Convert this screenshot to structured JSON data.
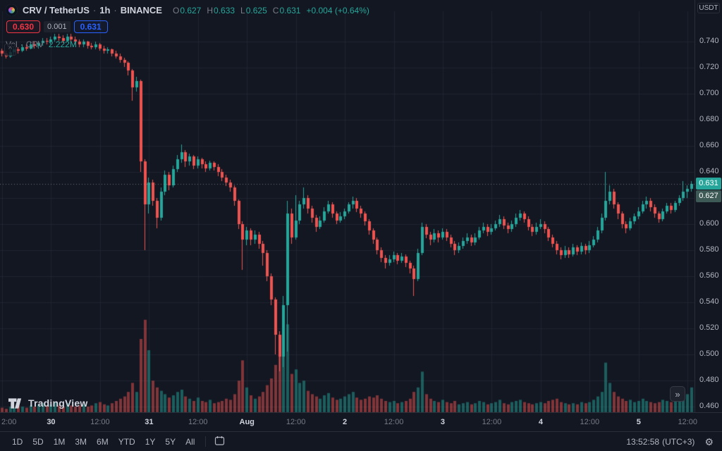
{
  "colors": {
    "background": "#131722",
    "up": "#26A69A",
    "down": "#EF5350",
    "vol_up": "rgba(38,166,154,0.5)",
    "vol_down": "rgba(239,83,80,0.5)",
    "grid": "rgba(42,46,57,0.55)",
    "last_price_line": "rgba(178,181,190,0.55)",
    "text": "#D1D4DC",
    "muted": "#787B86",
    "sell_red": "#F23645",
    "buy_blue": "#2962FF",
    "badge_last_bg": "#26A69A",
    "badge_secondary_bg": "#3E5A56"
  },
  "legend": {
    "symbol": "CRV / TetherUS",
    "sep": "·",
    "interval": "1h",
    "exchange": "BINANCE",
    "ohlc": {
      "o_label": "O",
      "o": "0.627",
      "h_label": "H",
      "h": "0.633",
      "l_label": "L",
      "l": "0.625",
      "c_label": "C",
      "c": "0.631",
      "change": "+0.004 (+0.64%)"
    }
  },
  "trade": {
    "sell": "0.630",
    "spread": "0.001",
    "buy": "0.631"
  },
  "volume_legend": {
    "label": "Vol",
    "sep": "·",
    "symbol": "CRV",
    "value": "2.222M"
  },
  "price_scale": {
    "currency": "USDT",
    "last_badge": "0.631",
    "secondary_badge": "0.627"
  },
  "toolbar": {
    "ranges": [
      "1D",
      "5D",
      "1M",
      "3M",
      "6M",
      "YTD",
      "1Y",
      "5Y",
      "All"
    ],
    "clock": "13:52:58",
    "timezone": "(UTC+3)"
  },
  "icons": {
    "chevron_up": "^",
    "double_arrow": "»",
    "gear": "⚙"
  },
  "tv_logo": {
    "text": "TradingView"
  },
  "chart_data": {
    "type": "candlestick",
    "symbol": "CRV / TetherUS",
    "interval": "1h",
    "exchange": "BINANCE",
    "visible_price_range": [
      0.456,
      0.757
    ],
    "y_ticks": [
      "0.740",
      "0.720",
      "0.700",
      "0.680",
      "0.660",
      "0.640",
      "0.620",
      "0.600",
      "0.580",
      "0.560",
      "0.540",
      "0.520",
      "0.500",
      "0.480",
      "0.460"
    ],
    "x_labels": [
      {
        "i": 0,
        "label": "2:00",
        "major": false
      },
      {
        "i": 12,
        "label": "30",
        "major": true
      },
      {
        "i": 24,
        "label": "12:00",
        "major": false
      },
      {
        "i": 36,
        "label": "31",
        "major": true
      },
      {
        "i": 48,
        "label": "12:00",
        "major": false
      },
      {
        "i": 60,
        "label": "Aug",
        "major": true
      },
      {
        "i": 72,
        "label": "12:00",
        "major": false
      },
      {
        "i": 84,
        "label": "2",
        "major": true
      },
      {
        "i": 96,
        "label": "12:00",
        "major": false
      },
      {
        "i": 108,
        "label": "3",
        "major": true
      },
      {
        "i": 120,
        "label": "12:00",
        "major": false
      },
      {
        "i": 132,
        "label": "4",
        "major": true
      },
      {
        "i": 144,
        "label": "12:00",
        "major": false
      },
      {
        "i": 156,
        "label": "5",
        "major": true
      },
      {
        "i": 168,
        "label": "12:00",
        "major": false
      }
    ],
    "candles": [
      [
        0.733,
        0.735,
        0.729,
        0.731
      ],
      [
        0.731,
        0.733,
        0.727,
        0.729
      ],
      [
        0.729,
        0.734,
        0.728,
        0.732
      ],
      [
        0.732,
        0.736,
        0.73,
        0.734
      ],
      [
        0.734,
        0.736,
        0.731,
        0.733
      ],
      [
        0.733,
        0.738,
        0.732,
        0.736
      ],
      [
        0.736,
        0.738,
        0.733,
        0.735
      ],
      [
        0.735,
        0.74,
        0.734,
        0.738
      ],
      [
        0.738,
        0.74,
        0.735,
        0.737
      ],
      [
        0.737,
        0.741,
        0.735,
        0.739
      ],
      [
        0.739,
        0.743,
        0.737,
        0.741
      ],
      [
        0.741,
        0.743,
        0.738,
        0.74
      ],
      [
        0.74,
        0.744,
        0.738,
        0.742
      ],
      [
        0.742,
        0.746,
        0.74,
        0.744
      ],
      [
        0.744,
        0.746,
        0.741,
        0.743
      ],
      [
        0.743,
        0.745,
        0.739,
        0.741
      ],
      [
        0.741,
        0.746,
        0.74,
        0.744
      ],
      [
        0.744,
        0.746,
        0.74,
        0.742
      ],
      [
        0.742,
        0.744,
        0.738,
        0.74
      ],
      [
        0.74,
        0.742,
        0.736,
        0.738
      ],
      [
        0.738,
        0.742,
        0.736,
        0.74
      ],
      [
        0.74,
        0.741,
        0.735,
        0.737
      ],
      [
        0.737,
        0.739,
        0.734,
        0.736
      ],
      [
        0.736,
        0.74,
        0.734,
        0.738
      ],
      [
        0.738,
        0.739,
        0.733,
        0.735
      ],
      [
        0.735,
        0.737,
        0.731,
        0.733
      ],
      [
        0.733,
        0.736,
        0.731,
        0.734
      ],
      [
        0.734,
        0.735,
        0.729,
        0.731
      ],
      [
        0.731,
        0.733,
        0.727,
        0.729
      ],
      [
        0.729,
        0.731,
        0.724,
        0.726
      ],
      [
        0.726,
        0.728,
        0.721,
        0.724
      ],
      [
        0.724,
        0.725,
        0.714,
        0.718
      ],
      [
        0.718,
        0.719,
        0.695,
        0.705
      ],
      [
        0.705,
        0.713,
        0.702,
        0.71
      ],
      [
        0.71,
        0.711,
        0.64,
        0.648
      ],
      [
        0.648,
        0.65,
        0.58,
        0.615
      ],
      [
        0.615,
        0.636,
        0.608,
        0.632
      ],
      [
        0.632,
        0.634,
        0.614,
        0.618
      ],
      [
        0.618,
        0.62,
        0.597,
        0.605
      ],
      [
        0.605,
        0.628,
        0.603,
        0.625
      ],
      [
        0.625,
        0.641,
        0.622,
        0.638
      ],
      [
        0.638,
        0.64,
        0.626,
        0.63
      ],
      [
        0.63,
        0.645,
        0.628,
        0.642
      ],
      [
        0.642,
        0.653,
        0.64,
        0.65
      ],
      [
        0.65,
        0.661,
        0.647,
        0.655
      ],
      [
        0.655,
        0.657,
        0.644,
        0.648
      ],
      [
        0.648,
        0.654,
        0.645,
        0.652
      ],
      [
        0.652,
        0.653,
        0.642,
        0.645
      ],
      [
        0.645,
        0.652,
        0.643,
        0.65
      ],
      [
        0.65,
        0.651,
        0.643,
        0.646
      ],
      [
        0.646,
        0.648,
        0.64,
        0.643
      ],
      [
        0.643,
        0.649,
        0.641,
        0.647
      ],
      [
        0.647,
        0.648,
        0.641,
        0.644
      ],
      [
        0.644,
        0.646,
        0.637,
        0.64
      ],
      [
        0.64,
        0.642,
        0.633,
        0.636
      ],
      [
        0.636,
        0.638,
        0.629,
        0.632
      ],
      [
        0.632,
        0.634,
        0.625,
        0.628
      ],
      [
        0.628,
        0.63,
        0.614,
        0.618
      ],
      [
        0.618,
        0.619,
        0.596,
        0.6
      ],
      [
        0.6,
        0.602,
        0.565,
        0.588
      ],
      [
        0.588,
        0.598,
        0.584,
        0.595
      ],
      [
        0.595,
        0.597,
        0.584,
        0.588
      ],
      [
        0.588,
        0.595,
        0.585,
        0.592
      ],
      [
        0.592,
        0.594,
        0.581,
        0.585
      ],
      [
        0.585,
        0.587,
        0.568,
        0.578
      ],
      [
        0.578,
        0.58,
        0.556,
        0.56
      ],
      [
        0.56,
        0.562,
        0.538,
        0.542
      ],
      [
        0.542,
        0.544,
        0.5,
        0.515
      ],
      [
        0.515,
        0.518,
        0.487,
        0.498
      ],
      [
        0.498,
        0.545,
        0.49,
        0.538
      ],
      [
        0.538,
        0.618,
        0.502,
        0.608
      ],
      [
        0.608,
        0.612,
        0.585,
        0.59
      ],
      [
        0.59,
        0.622,
        0.588,
        0.603
      ],
      [
        0.603,
        0.618,
        0.6,
        0.615
      ],
      [
        0.615,
        0.628,
        0.612,
        0.62
      ],
      [
        0.62,
        0.622,
        0.608,
        0.612
      ],
      [
        0.612,
        0.614,
        0.601,
        0.605
      ],
      [
        0.605,
        0.607,
        0.594,
        0.598
      ],
      [
        0.598,
        0.606,
        0.596,
        0.603
      ],
      [
        0.603,
        0.613,
        0.601,
        0.61
      ],
      [
        0.61,
        0.618,
        0.608,
        0.615
      ],
      [
        0.615,
        0.617,
        0.605,
        0.608
      ],
      [
        0.608,
        0.61,
        0.6,
        0.603
      ],
      [
        0.603,
        0.609,
        0.601,
        0.606
      ],
      [
        0.606,
        0.612,
        0.604,
        0.61
      ],
      [
        0.61,
        0.617,
        0.608,
        0.615
      ],
      [
        0.615,
        0.621,
        0.612,
        0.618
      ],
      [
        0.618,
        0.62,
        0.609,
        0.612
      ],
      [
        0.612,
        0.614,
        0.605,
        0.608
      ],
      [
        0.608,
        0.61,
        0.599,
        0.602
      ],
      [
        0.602,
        0.604,
        0.592,
        0.595
      ],
      [
        0.595,
        0.597,
        0.585,
        0.588
      ],
      [
        0.588,
        0.59,
        0.577,
        0.58
      ],
      [
        0.58,
        0.582,
        0.571,
        0.574
      ],
      [
        0.574,
        0.576,
        0.566,
        0.57
      ],
      [
        0.57,
        0.576,
        0.568,
        0.573
      ],
      [
        0.573,
        0.579,
        0.571,
        0.576
      ],
      [
        0.576,
        0.578,
        0.569,
        0.572
      ],
      [
        0.572,
        0.578,
        0.57,
        0.575
      ],
      [
        0.575,
        0.577,
        0.567,
        0.57
      ],
      [
        0.57,
        0.572,
        0.562,
        0.566
      ],
      [
        0.566,
        0.568,
        0.545,
        0.558
      ],
      [
        0.558,
        0.581,
        0.556,
        0.578
      ],
      [
        0.578,
        0.601,
        0.576,
        0.598
      ],
      [
        0.598,
        0.6,
        0.589,
        0.592
      ],
      [
        0.592,
        0.594,
        0.584,
        0.588
      ],
      [
        0.588,
        0.596,
        0.586,
        0.593
      ],
      [
        0.593,
        0.595,
        0.586,
        0.59
      ],
      [
        0.59,
        0.597,
        0.588,
        0.594
      ],
      [
        0.594,
        0.596,
        0.587,
        0.59
      ],
      [
        0.59,
        0.592,
        0.582,
        0.585
      ],
      [
        0.585,
        0.587,
        0.576,
        0.58
      ],
      [
        0.58,
        0.586,
        0.578,
        0.583
      ],
      [
        0.583,
        0.59,
        0.581,
        0.587
      ],
      [
        0.587,
        0.593,
        0.585,
        0.59
      ],
      [
        0.59,
        0.592,
        0.583,
        0.586
      ],
      [
        0.586,
        0.593,
        0.584,
        0.59
      ],
      [
        0.59,
        0.598,
        0.588,
        0.595
      ],
      [
        0.595,
        0.601,
        0.593,
        0.598
      ],
      [
        0.598,
        0.6,
        0.591,
        0.594
      ],
      [
        0.594,
        0.6,
        0.592,
        0.597
      ],
      [
        0.597,
        0.603,
        0.595,
        0.6
      ],
      [
        0.6,
        0.607,
        0.598,
        0.604
      ],
      [
        0.604,
        0.606,
        0.596,
        0.599
      ],
      [
        0.599,
        0.601,
        0.593,
        0.596
      ],
      [
        0.596,
        0.603,
        0.594,
        0.6
      ],
      [
        0.6,
        0.608,
        0.598,
        0.605
      ],
      [
        0.605,
        0.611,
        0.603,
        0.608
      ],
      [
        0.608,
        0.61,
        0.601,
        0.604
      ],
      [
        0.604,
        0.606,
        0.595,
        0.598
      ],
      [
        0.598,
        0.6,
        0.591,
        0.594
      ],
      [
        0.594,
        0.601,
        0.592,
        0.598
      ],
      [
        0.598,
        0.604,
        0.596,
        0.6
      ],
      [
        0.6,
        0.602,
        0.593,
        0.596
      ],
      [
        0.596,
        0.598,
        0.587,
        0.59
      ],
      [
        0.59,
        0.592,
        0.582,
        0.585
      ],
      [
        0.585,
        0.587,
        0.577,
        0.58
      ],
      [
        0.58,
        0.582,
        0.573,
        0.576
      ],
      [
        0.576,
        0.583,
        0.574,
        0.58
      ],
      [
        0.58,
        0.582,
        0.574,
        0.577
      ],
      [
        0.577,
        0.585,
        0.575,
        0.582
      ],
      [
        0.582,
        0.584,
        0.576,
        0.579
      ],
      [
        0.579,
        0.586,
        0.577,
        0.583
      ],
      [
        0.583,
        0.585,
        0.577,
        0.58
      ],
      [
        0.58,
        0.587,
        0.578,
        0.584
      ],
      [
        0.584,
        0.591,
        0.582,
        0.588
      ],
      [
        0.588,
        0.598,
        0.586,
        0.595
      ],
      [
        0.595,
        0.608,
        0.593,
        0.605
      ],
      [
        0.605,
        0.64,
        0.603,
        0.618
      ],
      [
        0.618,
        0.63,
        0.615,
        0.625
      ],
      [
        0.625,
        0.627,
        0.612,
        0.615
      ],
      [
        0.615,
        0.617,
        0.604,
        0.608
      ],
      [
        0.608,
        0.61,
        0.597,
        0.6
      ],
      [
        0.6,
        0.602,
        0.593,
        0.597
      ],
      [
        0.597,
        0.605,
        0.595,
        0.602
      ],
      [
        0.602,
        0.608,
        0.6,
        0.606
      ],
      [
        0.606,
        0.613,
        0.604,
        0.61
      ],
      [
        0.61,
        0.618,
        0.608,
        0.615
      ],
      [
        0.615,
        0.621,
        0.612,
        0.618
      ],
      [
        0.618,
        0.62,
        0.61,
        0.613
      ],
      [
        0.613,
        0.615,
        0.605,
        0.608
      ],
      [
        0.608,
        0.61,
        0.601,
        0.604
      ],
      [
        0.604,
        0.612,
        0.602,
        0.61
      ],
      [
        0.61,
        0.616,
        0.608,
        0.614
      ],
      [
        0.614,
        0.616,
        0.608,
        0.611
      ],
      [
        0.611,
        0.618,
        0.609,
        0.616
      ],
      [
        0.616,
        0.622,
        0.614,
        0.62
      ],
      [
        0.62,
        0.633,
        0.618,
        0.625
      ],
      [
        0.625,
        0.63,
        0.62,
        0.627
      ],
      [
        0.627,
        0.633,
        0.625,
        0.631
      ]
    ],
    "volumes": [
      0.4,
      0.3,
      0.5,
      0.4,
      0.6,
      0.5,
      0.4,
      0.6,
      0.5,
      0.7,
      0.8,
      0.6,
      0.7,
      0.9,
      0.6,
      0.5,
      0.8,
      0.6,
      0.5,
      0.6,
      0.7,
      0.5,
      0.6,
      0.8,
      0.9,
      0.7,
      0.6,
      0.8,
      1.0,
      1.2,
      1.4,
      1.8,
      2.6,
      1.8,
      6.5,
      8.2,
      5.5,
      2.8,
      2.2,
      1.9,
      1.6,
      1.3,
      1.5,
      1.8,
      2.0,
      1.4,
      1.2,
      1.0,
      1.3,
      1.0,
      0.9,
      1.1,
      0.8,
      0.9,
      1.0,
      1.2,
      1.1,
      1.6,
      2.8,
      4.6,
      2.2,
      1.5,
      1.2,
      1.4,
      1.8,
      2.4,
      3.0,
      4.2,
      5.0,
      5.6,
      7.8,
      3.4,
      3.8,
      2.6,
      2.8,
      1.9,
      1.6,
      1.4,
      1.2,
      1.5,
      1.7,
      1.3,
      1.1,
      1.2,
      1.4,
      1.6,
      1.8,
      1.3,
      1.1,
      1.2,
      1.4,
      1.3,
      1.5,
      1.2,
      1.0,
      0.9,
      1.0,
      0.8,
      0.9,
      1.0,
      1.2,
      1.8,
      2.2,
      3.6,
      1.6,
      1.2,
      1.0,
      0.9,
      1.1,
      0.9,
      0.8,
      1.0,
      0.7,
      0.8,
      0.9,
      0.7,
      0.8,
      1.0,
      0.9,
      0.7,
      0.8,
      0.9,
      1.1,
      0.8,
      0.7,
      0.9,
      1.0,
      1.1,
      0.9,
      0.8,
      0.7,
      0.8,
      0.9,
      0.8,
      1.0,
      1.1,
      1.2,
      0.9,
      0.8,
      0.7,
      0.8,
      0.7,
      0.9,
      0.8,
      0.9,
      1.1,
      1.4,
      1.8,
      4.4,
      2.6,
      1.8,
      1.4,
      1.2,
      1.0,
      1.1,
      0.9,
      1.0,
      1.2,
      1.0,
      0.9,
      0.8,
      0.9,
      1.1,
      1.0,
      0.9,
      1.0,
      1.3,
      1.9,
      1.6,
      2.2
    ]
  }
}
